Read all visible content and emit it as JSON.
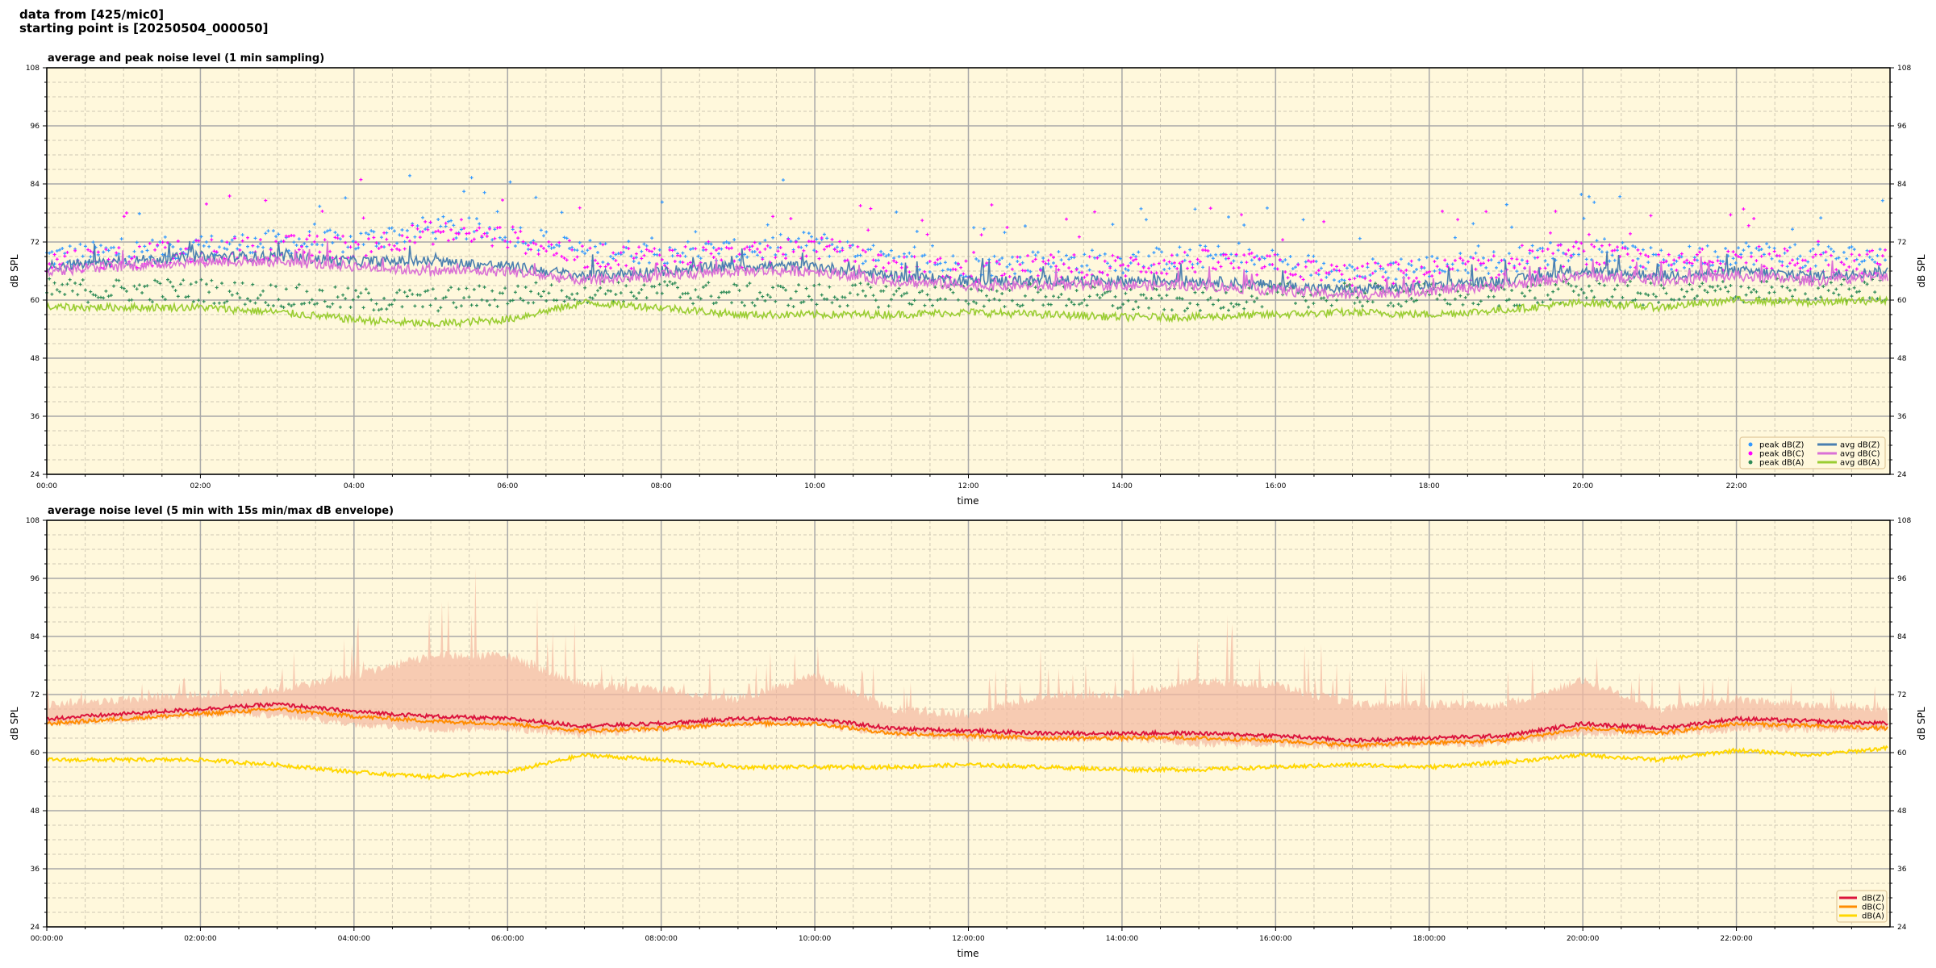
{
  "header": {
    "line1": "data from [425/mic0]",
    "line2": "starting point is [20250504_000050]"
  },
  "chart_data": [
    {
      "type": "line",
      "title": "average and peak noise level (1 min sampling)",
      "xlabel": "time",
      "ylabel": "dB SPL",
      "xlim_hours": [
        0,
        24
      ],
      "ylim": [
        24,
        108
      ],
      "yticks": [
        "24",
        "36",
        "48",
        "60",
        "72",
        "84",
        "96",
        "108"
      ],
      "xticks": [
        "00:00",
        "02:00",
        "04:00",
        "06:00",
        "08:00",
        "10:00",
        "12:00",
        "14:00",
        "16:00",
        "18:00",
        "20:00",
        "22:00"
      ],
      "grid": true,
      "background": "#fff8dc",
      "legend_position": "lower-right",
      "x_hours": [
        0,
        1,
        2,
        3,
        4,
        5,
        6,
        7,
        8,
        9,
        10,
        11,
        12,
        13,
        14,
        15,
        16,
        17,
        18,
        19,
        20,
        21,
        22,
        23,
        24
      ],
      "series": [
        {
          "name": "peak dB(Z)",
          "kind": "scatter",
          "color": "#3399ff",
          "values": [
            69,
            70,
            71,
            72,
            72,
            75,
            74,
            70,
            70,
            70,
            72,
            68,
            67,
            68,
            68,
            69,
            68,
            66,
            67,
            68,
            71,
            68,
            70,
            69,
            69
          ]
        },
        {
          "name": "peak dB(C)",
          "kind": "scatter",
          "color": "#ff00ff",
          "values": [
            68,
            69,
            70,
            71,
            71,
            74,
            73,
            69,
            69,
            69,
            71,
            67,
            66,
            67,
            67,
            68,
            67,
            65,
            66,
            67,
            70,
            67,
            69,
            68,
            68
          ]
        },
        {
          "name": "peak dB(A)",
          "kind": "scatter",
          "color": "#2e8b57",
          "values": [
            62,
            62,
            62,
            61,
            60,
            60,
            61,
            62,
            62,
            61,
            61,
            61,
            61,
            61,
            60,
            60,
            61,
            61,
            61,
            61,
            62,
            61,
            62,
            62,
            62
          ]
        },
        {
          "name": "avg dB(Z)",
          "kind": "line",
          "color": "#4a7fb0",
          "values": [
            67,
            68,
            69,
            69,
            68,
            68,
            67,
            65,
            66,
            67,
            67,
            65,
            64,
            64,
            64,
            64,
            63,
            62,
            63,
            64,
            66,
            65,
            66,
            65,
            66
          ]
        },
        {
          "name": "avg dB(C)",
          "kind": "line",
          "color": "#da70d6",
          "values": [
            66,
            67,
            68,
            68,
            67,
            66,
            66,
            64,
            65,
            66,
            66,
            64,
            63,
            63,
            63,
            63,
            62,
            61,
            62,
            63,
            65,
            64,
            65,
            64,
            65
          ]
        },
        {
          "name": "avg dB(A)",
          "kind": "line",
          "color": "#9acd32",
          "values": [
            58.5,
            58.5,
            58.5,
            57.5,
            56,
            55,
            56,
            59.5,
            58.5,
            57,
            57,
            57,
            57.5,
            57,
            56.5,
            56.5,
            57,
            57.5,
            57,
            58,
            59.5,
            58.5,
            60,
            59.5,
            60
          ]
        }
      ]
    },
    {
      "type": "line",
      "title": "average noise level (5 min with 15s min/max dB envelope)",
      "xlabel": "time",
      "ylabel": "dB SPL",
      "xlim_hours": [
        0,
        24
      ],
      "ylim": [
        24,
        108
      ],
      "yticks": [
        "24",
        "36",
        "48",
        "60",
        "72",
        "84",
        "96",
        "108"
      ],
      "xticks": [
        "00:00:00",
        "02:00:00",
        "04:00:00",
        "06:00:00",
        "08:00:00",
        "10:00:00",
        "12:00:00",
        "14:00:00",
        "16:00:00",
        "18:00:00",
        "20:00:00",
        "22:00:00"
      ],
      "grid": true,
      "background": "#fff8dc",
      "legend_position": "lower-right",
      "envelope_color": "#f4b8a0",
      "x_hours": [
        0,
        1,
        2,
        3,
        4,
        5,
        6,
        7,
        8,
        9,
        10,
        11,
        12,
        13,
        14,
        15,
        16,
        17,
        18,
        19,
        20,
        21,
        22,
        23,
        24
      ],
      "envelope_max": [
        70,
        71,
        72,
        73,
        76,
        80,
        80,
        74,
        73,
        71,
        76,
        69,
        68,
        72,
        72,
        75,
        74,
        70,
        70,
        70,
        75,
        69,
        71,
        70,
        69
      ],
      "envelope_min": [
        65,
        66,
        67,
        67,
        65,
        64,
        64,
        63,
        64,
        65,
        65,
        63,
        62,
        62,
        62,
        61,
        61,
        60,
        61,
        61,
        63,
        63,
        64,
        64,
        64
      ],
      "series": [
        {
          "name": "dB(Z)",
          "kind": "line",
          "color": "#dc143c",
          "values": [
            67,
            68,
            69,
            70,
            68.5,
            67.5,
            67,
            65.5,
            66,
            67,
            67,
            65,
            64.5,
            64,
            64,
            64,
            63.5,
            62.5,
            63,
            63.5,
            66,
            65,
            67,
            66.5,
            66
          ]
        },
        {
          "name": "dB(C)",
          "kind": "line",
          "color": "#ff8c00",
          "values": [
            66,
            67,
            68,
            69,
            67.5,
            66.5,
            66,
            64.5,
            65,
            66,
            66,
            64,
            63.5,
            63,
            63,
            63,
            62.5,
            61.5,
            62,
            62.5,
            65,
            64,
            66,
            65.5,
            65
          ]
        },
        {
          "name": "dB(A)",
          "kind": "line",
          "color": "#ffd700",
          "values": [
            58.5,
            58.5,
            58.5,
            57.5,
            56,
            55,
            56,
            59.5,
            58.5,
            57,
            57,
            57,
            57.5,
            57,
            56.5,
            56.5,
            57,
            57.5,
            57,
            58,
            59.5,
            58.5,
            60.5,
            59.5,
            61
          ]
        }
      ]
    }
  ]
}
